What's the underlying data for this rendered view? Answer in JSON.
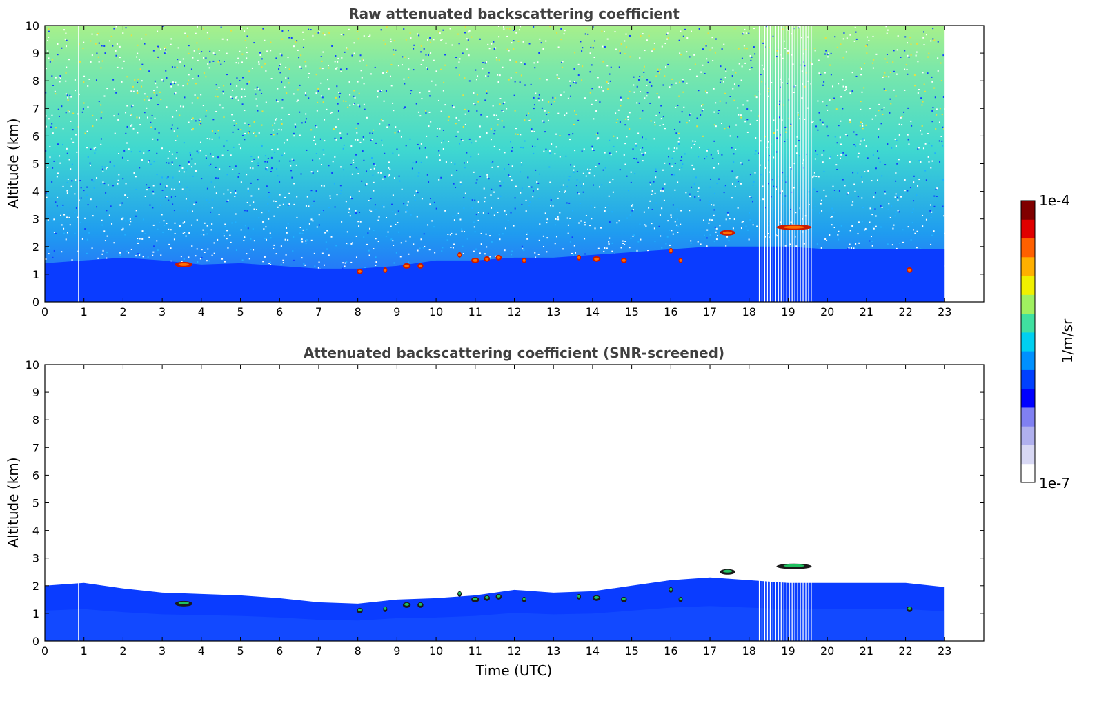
{
  "chart_data": [
    {
      "type": "heatmap",
      "title": "Raw attenuated backscattering coefficient",
      "xlabel": "",
      "ylabel": "Altitude (km)",
      "xlim": [
        0,
        24
      ],
      "ylim": [
        0,
        10
      ],
      "x_ticks": [
        0,
        1,
        2,
        3,
        4,
        5,
        6,
        7,
        8,
        9,
        10,
        11,
        12,
        13,
        14,
        15,
        16,
        17,
        18,
        19,
        20,
        21,
        22,
        23
      ],
      "y_ticks": [
        0,
        1,
        2,
        3,
        4,
        5,
        6,
        7,
        8,
        9,
        10
      ],
      "data_extent_hours": [
        0,
        23
      ],
      "boundary_layer_top_km": [
        {
          "x": 0,
          "y": 1.4
        },
        {
          "x": 2,
          "y": 1.6
        },
        {
          "x": 3,
          "y": 1.5
        },
        {
          "x": 4,
          "y": 1.35
        },
        {
          "x": 5,
          "y": 1.4
        },
        {
          "x": 6,
          "y": 1.3
        },
        {
          "x": 7,
          "y": 1.2
        },
        {
          "x": 8,
          "y": 1.2
        },
        {
          "x": 9,
          "y": 1.3
        },
        {
          "x": 10,
          "y": 1.5
        },
        {
          "x": 11,
          "y": 1.5
        },
        {
          "x": 12,
          "y": 1.6
        },
        {
          "x": 13,
          "y": 1.6
        },
        {
          "x": 14,
          "y": 1.7
        },
        {
          "x": 15,
          "y": 1.8
        },
        {
          "x": 16,
          "y": 1.9
        },
        {
          "x": 17,
          "y": 2.0
        },
        {
          "x": 18,
          "y": 2.0
        },
        {
          "x": 19,
          "y": 2.0
        },
        {
          "x": 20,
          "y": 1.9
        },
        {
          "x": 21,
          "y": 1.9
        },
        {
          "x": 22,
          "y": 1.9
        },
        {
          "x": 23,
          "y": 1.9
        }
      ],
      "cloud_features": [
        {
          "x": 3.55,
          "y": 1.35,
          "width_h": 0.45
        },
        {
          "x": 8.05,
          "y": 1.1,
          "width_h": 0.15
        },
        {
          "x": 8.7,
          "y": 1.15,
          "width_h": 0.1
        },
        {
          "x": 9.25,
          "y": 1.3,
          "width_h": 0.2
        },
        {
          "x": 9.6,
          "y": 1.3,
          "width_h": 0.15
        },
        {
          "x": 10.6,
          "y": 1.7,
          "width_h": 0.1
        },
        {
          "x": 11.0,
          "y": 1.5,
          "width_h": 0.2
        },
        {
          "x": 11.3,
          "y": 1.55,
          "width_h": 0.15
        },
        {
          "x": 11.6,
          "y": 1.6,
          "width_h": 0.15
        },
        {
          "x": 12.25,
          "y": 1.5,
          "width_h": 0.1
        },
        {
          "x": 13.65,
          "y": 1.6,
          "width_h": 0.1
        },
        {
          "x": 14.1,
          "y": 1.55,
          "width_h": 0.2
        },
        {
          "x": 14.8,
          "y": 1.5,
          "width_h": 0.15
        },
        {
          "x": 16.0,
          "y": 1.85,
          "width_h": 0.1
        },
        {
          "x": 16.25,
          "y": 1.5,
          "width_h": 0.1
        },
        {
          "x": 17.45,
          "y": 2.5,
          "width_h": 0.4
        },
        {
          "x": 19.15,
          "y": 2.7,
          "width_h": 0.9
        },
        {
          "x": 22.1,
          "y": 1.15,
          "width_h": 0.15
        }
      ],
      "grid": false
    },
    {
      "type": "heatmap",
      "title": "Attenuated backscattering coefficient (SNR-screened)",
      "xlabel": "Time (UTC)",
      "ylabel": "Altitude (km)",
      "xlim": [
        0,
        24
      ],
      "ylim": [
        0,
        10
      ],
      "x_ticks": [
        0,
        1,
        2,
        3,
        4,
        5,
        6,
        7,
        8,
        9,
        10,
        11,
        12,
        13,
        14,
        15,
        16,
        17,
        18,
        19,
        20,
        21,
        22,
        23
      ],
      "y_ticks": [
        0,
        1,
        2,
        3,
        4,
        5,
        6,
        7,
        8,
        9,
        10
      ],
      "data_extent_hours": [
        0,
        23
      ],
      "screened_top_km": [
        {
          "x": 0,
          "y": 2.0
        },
        {
          "x": 1,
          "y": 2.1
        },
        {
          "x": 2,
          "y": 1.9
        },
        {
          "x": 3,
          "y": 1.75
        },
        {
          "x": 4,
          "y": 1.7
        },
        {
          "x": 5,
          "y": 1.65
        },
        {
          "x": 6,
          "y": 1.55
        },
        {
          "x": 7,
          "y": 1.4
        },
        {
          "x": 8,
          "y": 1.35
        },
        {
          "x": 9,
          "y": 1.5
        },
        {
          "x": 10,
          "y": 1.55
        },
        {
          "x": 11,
          "y": 1.65
        },
        {
          "x": 12,
          "y": 1.85
        },
        {
          "x": 13,
          "y": 1.75
        },
        {
          "x": 14,
          "y": 1.8
        },
        {
          "x": 15,
          "y": 2.0
        },
        {
          "x": 16,
          "y": 2.2
        },
        {
          "x": 17,
          "y": 2.3
        },
        {
          "x": 18,
          "y": 2.2
        },
        {
          "x": 19,
          "y": 2.1
        },
        {
          "x": 20,
          "y": 2.1
        },
        {
          "x": 21,
          "y": 2.1
        },
        {
          "x": 22,
          "y": 2.1
        },
        {
          "x": 23,
          "y": 1.95
        }
      ],
      "grid": false
    }
  ],
  "colorbar": {
    "label": "1/m/sr",
    "max_label": "1e-4",
    "min_label": "1e-7",
    "scale": "log",
    "colors": [
      "#ffffff",
      "#d8d8f4",
      "#b0b0ee",
      "#8080f2",
      "#0000ff",
      "#0040ff",
      "#0090ff",
      "#00d0f0",
      "#40e0a0",
      "#a0f060",
      "#f0f000",
      "#ffb000",
      "#ff6000",
      "#e00000",
      "#800000"
    ]
  }
}
